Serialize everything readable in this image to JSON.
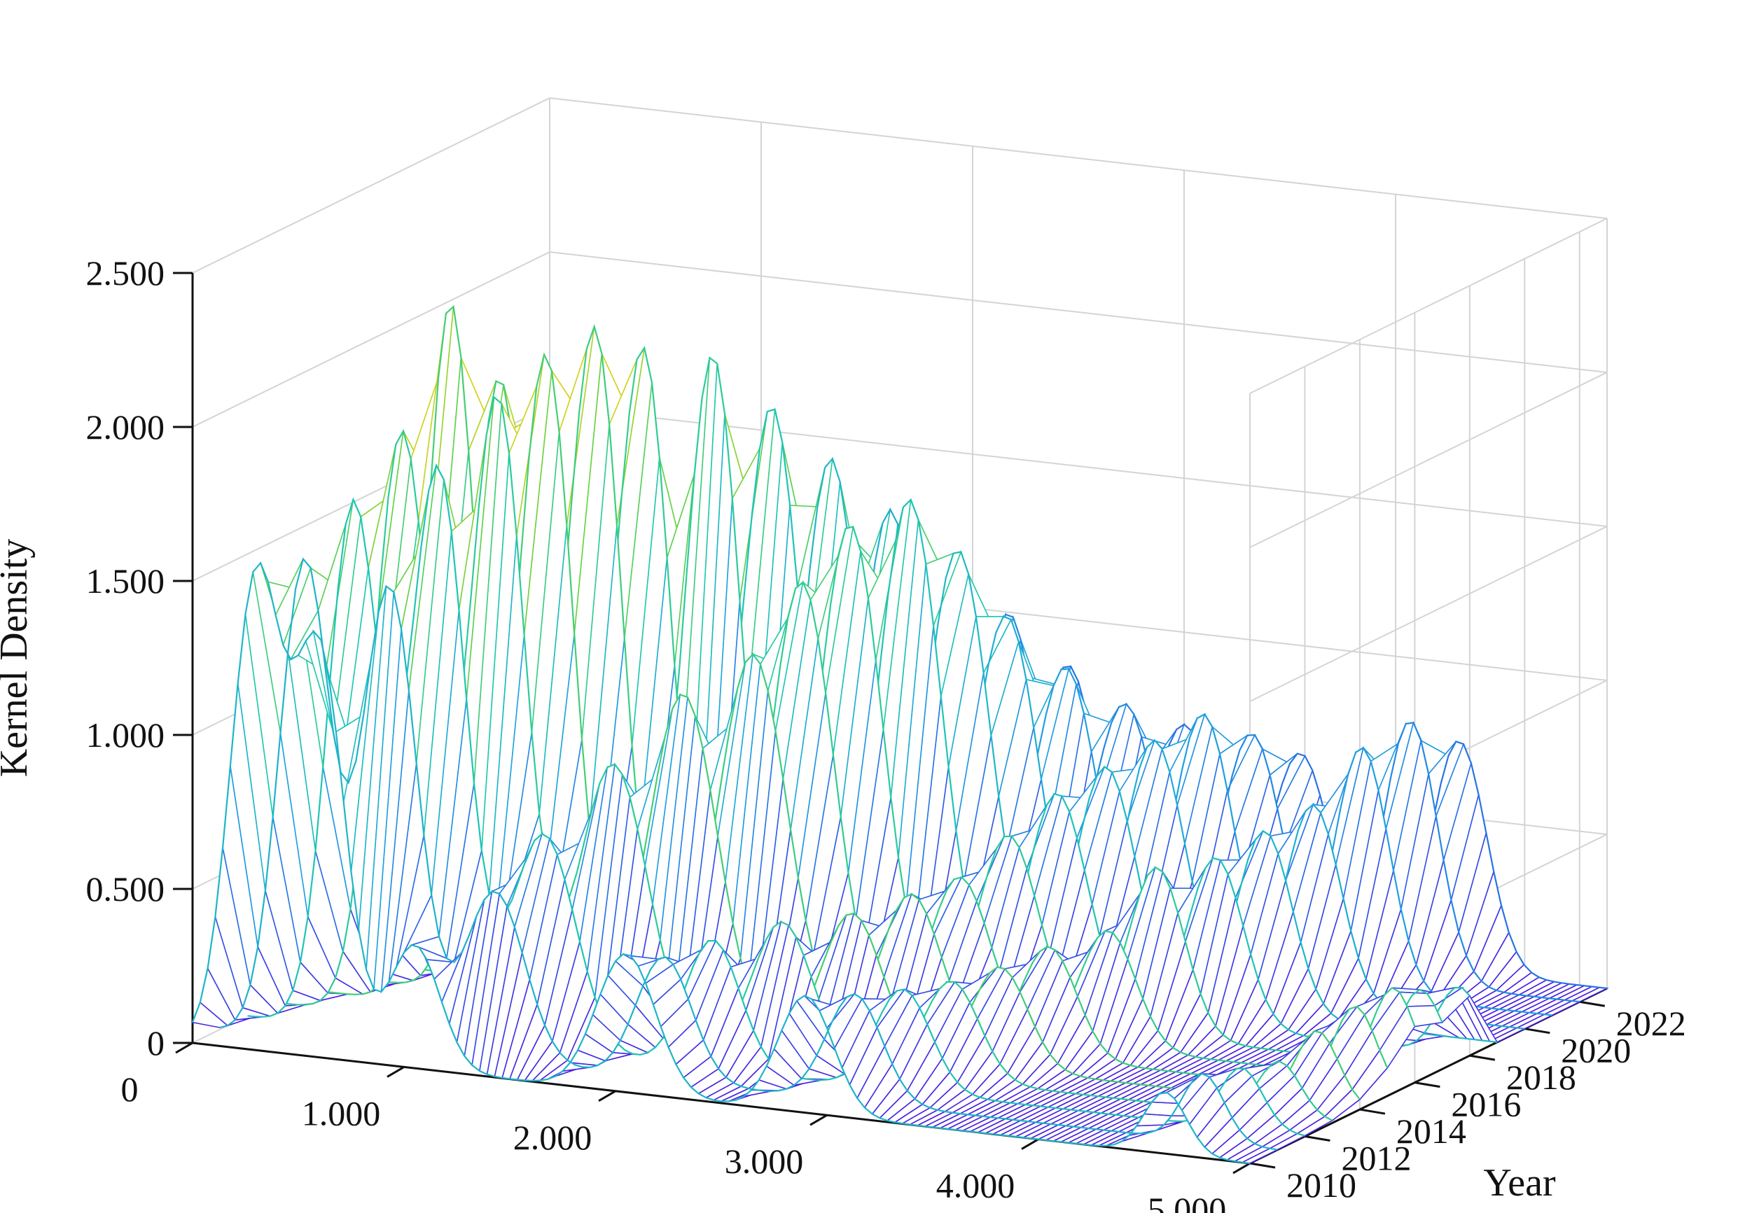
{
  "chart_data": {
    "type": "surface-3d-wireframe",
    "title": "",
    "xlabel": "",
    "ylabel": "Year",
    "zlabel": "Kernel Density",
    "x_range": [
      0,
      5.0
    ],
    "x_ticks": [
      "0",
      "1.000",
      "2.000",
      "3.000",
      "4.000",
      "5.000"
    ],
    "y_range": [
      2010,
      2023
    ],
    "y_ticks": [
      "2010",
      "2012",
      "2014",
      "2016",
      "2018",
      "2020",
      "2022"
    ],
    "z_range": [
      0,
      2.5
    ],
    "z_ticks": [
      "0",
      "0.500",
      "1.000",
      "1.500",
      "2.000",
      "2.500"
    ],
    "colormap": [
      "#4a1fe0",
      "#2f5ce6",
      "#1fa2e0",
      "#1ec9b0",
      "#61d246",
      "#cfd31e",
      "#f3be16"
    ],
    "grid": true,
    "series": [
      {
        "year": 2010,
        "peaks": [
          [
            0.3,
            1.52,
            0.12
          ],
          [
            0.6,
            1.3,
            0.12
          ],
          [
            1.05,
            0.4,
            0.12
          ],
          [
            2.05,
            0.45,
            0.14
          ],
          [
            2.9,
            0.38,
            0.13
          ],
          [
            4.6,
            0.2,
            0.1
          ]
        ]
      },
      {
        "year": 2011,
        "peaks": [
          [
            0.4,
            1.55,
            0.12
          ],
          [
            0.8,
            1.5,
            0.13
          ],
          [
            1.3,
            0.55,
            0.14
          ],
          [
            2.1,
            0.4,
            0.13
          ],
          [
            3.0,
            0.35,
            0.13
          ],
          [
            4.65,
            0.22,
            0.1
          ]
        ]
      },
      {
        "year": 2012,
        "peaks": [
          [
            0.5,
            1.7,
            0.12
          ],
          [
            0.9,
            1.85,
            0.13
          ],
          [
            1.4,
            0.7,
            0.15
          ],
          [
            2.2,
            0.42,
            0.13
          ],
          [
            3.1,
            0.33,
            0.13
          ],
          [
            4.7,
            0.2,
            0.1
          ]
        ]
      },
      {
        "year": 2013,
        "peaks": [
          [
            0.6,
            1.9,
            0.13
          ],
          [
            1.05,
            2.05,
            0.13
          ],
          [
            1.6,
            0.9,
            0.16
          ],
          [
            2.4,
            0.45,
            0.14
          ],
          [
            3.2,
            0.32,
            0.13
          ],
          [
            4.75,
            0.18,
            0.1
          ]
        ]
      },
      {
        "year": 2014,
        "peaks": [
          [
            0.7,
            2.28,
            0.12
          ],
          [
            1.15,
            2.15,
            0.13
          ],
          [
            1.8,
            1.1,
            0.16
          ],
          [
            2.6,
            0.45,
            0.14
          ],
          [
            3.3,
            0.33,
            0.13
          ],
          [
            4.8,
            0.24,
            0.1
          ]
        ]
      },
      {
        "year": 2015,
        "peaks": [
          [
            0.8,
            2.0,
            0.13
          ],
          [
            1.25,
            2.2,
            0.13
          ],
          [
            2.0,
            1.2,
            0.16
          ],
          [
            2.75,
            0.48,
            0.14
          ],
          [
            3.4,
            0.36,
            0.13
          ],
          [
            4.85,
            0.28,
            0.1
          ]
        ]
      },
      {
        "year": 2016,
        "peaks": [
          [
            0.9,
            1.95,
            0.13
          ],
          [
            1.35,
            2.1,
            0.13
          ],
          [
            2.1,
            1.4,
            0.15
          ],
          [
            2.85,
            0.5,
            0.14
          ],
          [
            3.55,
            0.38,
            0.13
          ],
          [
            4.9,
            0.3,
            0.1
          ]
        ]
      },
      {
        "year": 2017,
        "peaks": [
          [
            1.0,
            1.7,
            0.14
          ],
          [
            1.55,
            2.05,
            0.13
          ],
          [
            2.2,
            1.55,
            0.15
          ],
          [
            2.95,
            0.6,
            0.14
          ],
          [
            3.65,
            0.55,
            0.13
          ],
          [
            4.9,
            0.25,
            0.1
          ]
        ]
      },
      {
        "year": 2018,
        "peaks": [
          [
            1.15,
            1.5,
            0.15
          ],
          [
            1.7,
            1.85,
            0.14
          ],
          [
            2.35,
            1.6,
            0.15
          ],
          [
            3.05,
            0.7,
            0.14
          ],
          [
            3.8,
            0.55,
            0.13
          ],
          [
            4.95,
            0.22,
            0.1
          ]
        ]
      },
      {
        "year": 2019,
        "peaks": [
          [
            1.25,
            1.3,
            0.15
          ],
          [
            1.85,
            1.65,
            0.14
          ],
          [
            2.45,
            1.4,
            0.15
          ],
          [
            3.15,
            0.75,
            0.14
          ],
          [
            3.9,
            0.6,
            0.13
          ]
        ]
      },
      {
        "year": 2020,
        "peaks": [
          [
            1.4,
            1.05,
            0.15
          ],
          [
            2.0,
            1.45,
            0.14
          ],
          [
            2.55,
            1.15,
            0.15
          ],
          [
            3.25,
            0.8,
            0.14
          ],
          [
            4.0,
            0.65,
            0.13
          ]
        ]
      },
      {
        "year": 2021,
        "peaks": [
          [
            1.55,
            0.85,
            0.15
          ],
          [
            2.15,
            1.25,
            0.14
          ],
          [
            2.7,
            0.95,
            0.15
          ],
          [
            3.35,
            0.85,
            0.14
          ],
          [
            4.1,
            0.8,
            0.13
          ]
        ]
      },
      {
        "year": 2022,
        "peaks": [
          [
            1.7,
            0.7,
            0.15
          ],
          [
            2.3,
            1.05,
            0.14
          ],
          [
            2.85,
            0.8,
            0.15
          ],
          [
            3.45,
            0.75,
            0.14
          ],
          [
            4.2,
            0.85,
            0.13
          ]
        ]
      },
      {
        "year": 2023,
        "peaks": [
          [
            1.85,
            0.55,
            0.15
          ],
          [
            2.45,
            0.85,
            0.14
          ],
          [
            3.0,
            0.7,
            0.15
          ],
          [
            3.55,
            0.65,
            0.14
          ],
          [
            4.3,
            0.75,
            0.13
          ]
        ]
      }
    ]
  }
}
